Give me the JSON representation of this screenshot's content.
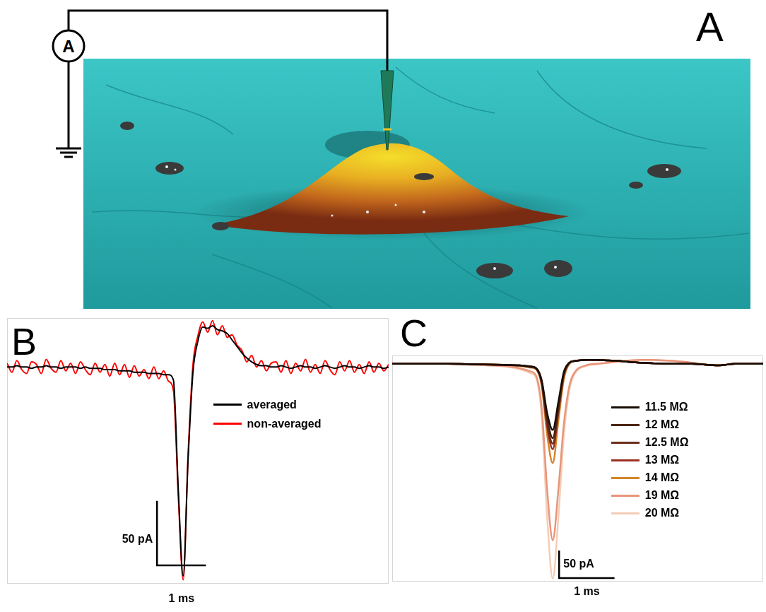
{
  "panel_a": {
    "panel_label": "A",
    "meter_label": "A"
  },
  "chart_data": [
    {
      "panel_label": "B",
      "type": "line",
      "x": [
        0,
        0.1,
        0.2,
        0.3,
        0.4,
        0.5,
        0.6,
        0.7,
        0.8,
        0.9,
        1,
        1.1,
        1.2,
        1.3,
        1.4,
        1.5,
        1.6,
        1.7,
        1.8,
        1.9,
        2,
        2.1,
        2.2,
        2.3,
        2.4,
        2.5,
        2.6,
        2.7,
        2.8,
        2.9,
        3,
        3.1,
        3.2,
        3.3,
        3.4,
        3.5,
        3.6,
        3.7,
        3.8,
        3.9,
        4,
        4.1,
        4.2,
        4.3,
        4.4,
        4.5,
        4.6,
        4.7,
        4.8,
        4.9,
        5,
        5.1,
        5.2,
        5.3,
        5.4,
        5.5,
        5.6,
        5.7,
        5.8,
        5.9,
        6,
        6.1,
        6.2,
        6.3,
        6.4,
        6.5,
        6.6,
        6.7,
        6.8,
        6.9,
        7,
        7.1,
        7.2,
        7.3,
        7.4,
        7.5,
        7.6,
        7.7,
        7.8
      ],
      "xlim": [
        0,
        7.8
      ],
      "ylim": [
        -168,
        38
      ],
      "tick_labels": false,
      "grid": false,
      "legend": "right",
      "series": [
        {
          "name": "averaged",
          "color": "#000000",
          "values": [
            0,
            0,
            1,
            0,
            0,
            -1,
            0,
            0,
            1,
            0,
            0,
            -1,
            0,
            0,
            0,
            -1,
            0,
            -1,
            -1,
            -1,
            -2,
            -2,
            -2,
            -3,
            -3,
            -3,
            -4,
            -4,
            -4,
            -5,
            -5,
            -5,
            -6,
            -6,
            -10,
            -95,
            -162,
            -72,
            -4,
            20,
            31,
            30,
            32,
            29,
            28,
            26,
            21,
            16,
            11,
            7,
            4,
            2,
            1,
            1,
            0,
            0,
            1,
            0,
            -1,
            0,
            1,
            0,
            0,
            -1,
            0,
            1,
            0,
            -1,
            0,
            1,
            0,
            0,
            -1,
            0,
            1,
            0,
            0,
            -1,
            0
          ]
        },
        {
          "name": "non-averaged",
          "color": "#ff0000",
          "values": [
            3,
            -4,
            5,
            -2,
            -5,
            4,
            2,
            -5,
            6,
            -1,
            -4,
            5,
            -3,
            3,
            -5,
            4,
            -2,
            -6,
            3,
            -4,
            2,
            -7,
            3,
            -6,
            2,
            -8,
            1,
            -7,
            -2,
            -9,
            0,
            -9,
            -3,
            -11,
            -18,
            -100,
            -165,
            -68,
            2,
            24,
            35,
            27,
            36,
            25,
            32,
            23,
            25,
            17,
            13,
            4,
            9,
            0,
            5,
            -3,
            3,
            4,
            -4,
            5,
            -5,
            3,
            -3,
            6,
            -4,
            2,
            -5,
            5,
            -2,
            -6,
            4,
            -3,
            5,
            -4,
            2,
            -5,
            4,
            -4,
            3,
            -3,
            2
          ]
        }
      ],
      "scale_bar": {
        "x": 1,
        "x_label": "1 ms",
        "y": 50,
        "y_label": "50 pA"
      }
    },
    {
      "panel_label": "C",
      "type": "line",
      "x": [
        0,
        0.5,
        1,
        1.5,
        2,
        2.3,
        2.5,
        2.6,
        2.7,
        2.8,
        2.9,
        3,
        3.1,
        3.2,
        3.3,
        3.5,
        3.7,
        3.9,
        4.1,
        4.3,
        4.5,
        4.7,
        4.9,
        5.1,
        5.4,
        5.7,
        5.9,
        6.2,
        6.7
      ],
      "xlim": [
        0,
        6.7
      ],
      "ylim": [
        -395,
        15
      ],
      "tick_labels": false,
      "grid": false,
      "legend": "right",
      "series": [
        {
          "name": "11.5 MΩ",
          "color": "#1a0d05",
          "values": [
            0,
            0,
            0,
            -1,
            -2,
            -3,
            -5,
            -8,
            -30,
            -90,
            -120,
            -70,
            -15,
            2,
            5,
            7,
            7,
            6,
            5,
            3,
            2,
            1,
            0,
            0,
            0,
            -2,
            -3,
            0,
            0
          ]
        },
        {
          "name": "12 MΩ",
          "color": "#4a2511",
          "values": [
            0,
            0,
            0,
            -1,
            -2,
            -3,
            -5,
            -8,
            -32,
            -100,
            -135,
            -80,
            -18,
            2,
            5,
            7,
            7,
            6,
            5,
            3,
            2,
            1,
            0,
            0,
            0,
            -2,
            -3,
            0,
            0
          ]
        },
        {
          "name": "12.5 MΩ",
          "color": "#6b2e1a",
          "values": [
            0,
            0,
            0,
            -1,
            -2,
            -3,
            -6,
            -9,
            -34,
            -108,
            -145,
            -85,
            -20,
            1,
            5,
            7,
            7,
            6,
            5,
            3,
            2,
            1,
            0,
            0,
            0,
            -2,
            -3,
            0,
            0
          ]
        },
        {
          "name": "13 MΩ",
          "color": "#9b2f22",
          "values": [
            0,
            0,
            0,
            -1,
            -2,
            -3,
            -6,
            -9,
            -36,
            -115,
            -155,
            -90,
            -22,
            1,
            5,
            7,
            7,
            6,
            5,
            3,
            2,
            1,
            0,
            0,
            0,
            -2,
            -3,
            0,
            0
          ]
        },
        {
          "name": "14 MΩ",
          "color": "#d2852a",
          "values": [
            0,
            0,
            0,
            -1,
            -2,
            -4,
            -7,
            -10,
            -40,
            -130,
            -180,
            -105,
            -28,
            0,
            5,
            7,
            7,
            6,
            5,
            3,
            2,
            1,
            0,
            0,
            0,
            -2,
            -3,
            0,
            0
          ]
        },
        {
          "name": "19 MΩ",
          "color": "#e8957a",
          "values": [
            0,
            0,
            0,
            -2,
            -4,
            -8,
            -14,
            -22,
            -80,
            -230,
            -320,
            -230,
            -110,
            -40,
            -15,
            -3,
            0,
            2,
            4,
            6,
            7,
            7,
            6,
            5,
            2,
            -2,
            -3,
            0,
            0
          ]
        },
        {
          "name": "20 MΩ",
          "color": "#f4cdb8",
          "values": [
            0,
            0,
            0,
            -2,
            -5,
            -10,
            -17,
            -26,
            -95,
            -280,
            -390,
            -280,
            -130,
            -48,
            -18,
            -4,
            -1,
            2,
            4,
            6,
            7,
            7,
            6,
            5,
            2,
            -2,
            -3,
            0,
            0
          ]
        }
      ],
      "scale_bar": {
        "x": 1,
        "x_label": "1 ms",
        "y": 50,
        "y_label": "50 pA"
      }
    }
  ]
}
